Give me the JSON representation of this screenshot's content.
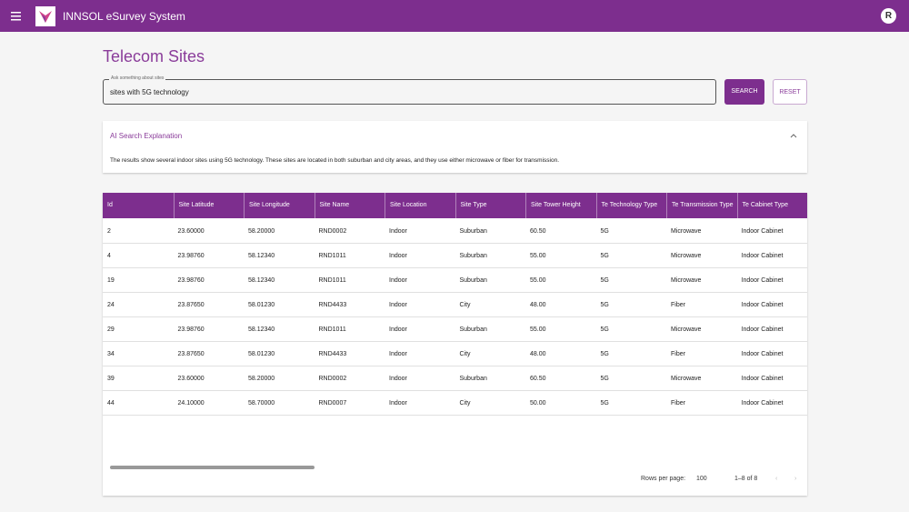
{
  "app_bar": {
    "title": "INNSOL eSurvey System",
    "avatar": "R"
  },
  "page": {
    "title": "Telecom Sites"
  },
  "search": {
    "label": "Ask something about sites",
    "query": "sites with 5G technology",
    "search_button": "SEARCH",
    "reset_button": "RESET"
  },
  "explanation": {
    "title": "AI Search Explanation",
    "text": "The results show several indoor sites using 5G technology. These sites are located in both suburban and city areas, and they use either microwave or fiber for transmission."
  },
  "table": {
    "columns": [
      "Id",
      "Site Latitude",
      "Site Longitude",
      "Site Name",
      "Site Location",
      "Site Type",
      "Site Tower Height",
      "Te Technology Type",
      "Te Transmission Type",
      "Te Cabinet Type"
    ],
    "rows": [
      [
        "2",
        "23.60000",
        "58.20000",
        "RND0002",
        "Indoor",
        "Suburban",
        "60.50",
        "5G",
        "Microwave",
        "Indoor Cabinet"
      ],
      [
        "4",
        "23.98760",
        "58.12340",
        "RND1011",
        "Indoor",
        "Suburban",
        "55.00",
        "5G",
        "Microwave",
        "Indoor Cabinet"
      ],
      [
        "19",
        "23.98760",
        "58.12340",
        "RND1011",
        "Indoor",
        "Suburban",
        "55.00",
        "5G",
        "Microwave",
        "Indoor Cabinet"
      ],
      [
        "24",
        "23.87650",
        "58.01230",
        "RND4433",
        "Indoor",
        "City",
        "48.00",
        "5G",
        "Fiber",
        "Indoor Cabinet"
      ],
      [
        "29",
        "23.98760",
        "58.12340",
        "RND1011",
        "Indoor",
        "Suburban",
        "55.00",
        "5G",
        "Microwave",
        "Indoor Cabinet"
      ],
      [
        "34",
        "23.87650",
        "58.01230",
        "RND4433",
        "Indoor",
        "City",
        "48.00",
        "5G",
        "Fiber",
        "Indoor Cabinet"
      ],
      [
        "39",
        "23.60000",
        "58.20000",
        "RND0002",
        "Indoor",
        "Suburban",
        "60.50",
        "5G",
        "Microwave",
        "Indoor Cabinet"
      ],
      [
        "44",
        "24.10000",
        "58.70000",
        "RND0007",
        "Indoor",
        "City",
        "50.00",
        "5G",
        "Fiber",
        "Indoor Cabinet"
      ]
    ]
  },
  "pagination": {
    "rows_per_page_label": "Rows per page:",
    "rows_per_page": "100",
    "range": "1–8 of 8"
  }
}
